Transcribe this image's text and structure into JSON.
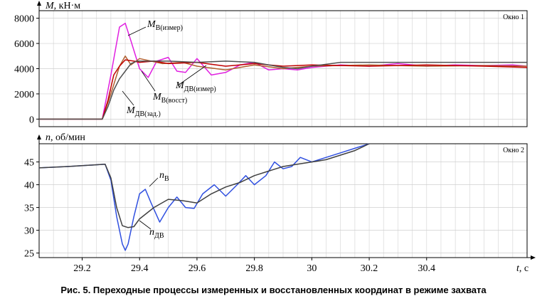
{
  "caption": "Рис. 5. Переходные процессы измеренных и восстановленных координат в режиме захвата",
  "chart_data": [
    {
      "type": "line",
      "window_label": "Окно 1",
      "ylabel_var": "M",
      "ylabel_unit": ", кН·м",
      "ylim": [
        -600,
        8600
      ],
      "yticks": [
        0,
        2000,
        4000,
        6000,
        8000
      ],
      "xlim": [
        29.05,
        30.75
      ],
      "grid": true,
      "annotations": [
        {
          "main": "M",
          "sub": "В(измер)"
        },
        {
          "main": "M",
          "sub": "ДВ(измер)"
        },
        {
          "main": "M",
          "sub": "В(восст)"
        },
        {
          "main": "M",
          "sub": "ДВ(зад.)"
        }
      ],
      "series": [
        {
          "color": "#e020e0",
          "x": [
            29.05,
            29.27,
            29.3,
            29.33,
            29.35,
            29.37,
            29.4,
            29.43,
            29.46,
            29.5,
            29.53,
            29.56,
            29.6,
            29.65,
            29.7,
            29.75,
            29.8,
            29.85,
            29.9,
            29.95,
            30.0,
            30.1,
            30.2,
            30.3,
            30.4,
            30.5,
            30.6,
            30.7,
            30.75
          ],
          "values": [
            0,
            0,
            3500,
            7300,
            7600,
            6200,
            4000,
            3300,
            4600,
            4900,
            3800,
            3700,
            4800,
            3500,
            3700,
            4300,
            4500,
            3900,
            4000,
            3900,
            4100,
            4300,
            4200,
            4400,
            4200,
            4300,
            4250,
            4300,
            4200
          ]
        },
        {
          "color": "#b06030",
          "x": [
            29.05,
            29.27,
            29.3,
            29.33,
            29.35,
            29.37,
            29.4,
            29.44,
            29.48,
            29.55,
            29.6,
            29.7,
            29.8,
            29.9,
            30.0,
            30.2,
            30.4,
            30.6,
            30.75
          ],
          "values": [
            0,
            0,
            2000,
            4200,
            5000,
            4300,
            4800,
            4600,
            4400,
            4500,
            4200,
            3900,
            4300,
            4000,
            4200,
            4300,
            4200,
            4250,
            4200
          ]
        },
        {
          "color": "#c00000",
          "x": [
            29.05,
            29.27,
            29.29,
            29.31,
            29.33,
            29.35,
            29.38,
            29.4,
            29.45,
            29.5,
            29.6,
            29.7,
            29.8,
            29.9,
            30.0,
            30.2,
            30.4,
            30.6,
            30.75
          ],
          "values": [
            0,
            0,
            1500,
            3500,
            4200,
            4700,
            4600,
            4500,
            4600,
            4400,
            4500,
            4200,
            4400,
            4200,
            4300,
            4200,
            4300,
            4200,
            4100
          ]
        },
        {
          "color": "#505050",
          "x": [
            29.05,
            29.27,
            29.29,
            29.31,
            29.33,
            29.35,
            29.37,
            29.39,
            29.42,
            29.5,
            29.6,
            29.7,
            29.8,
            29.85,
            29.9,
            29.95,
            30.0,
            30.1,
            30.2,
            30.4,
            30.6,
            30.75
          ],
          "values": [
            0,
            0,
            1000,
            2300,
            3200,
            3800,
            4400,
            4600,
            4600,
            4600,
            4500,
            4600,
            4500,
            4300,
            4100,
            4000,
            4200,
            4500,
            4500,
            4500,
            4500,
            4500
          ]
        }
      ]
    },
    {
      "type": "line",
      "window_label": "Окно 2",
      "ylabel_var": "n",
      "ylabel_unit": ", об/мин",
      "ylim": [
        24,
        49
      ],
      "yticks": [
        25,
        30,
        35,
        40,
        45
      ],
      "xlim": [
        29.05,
        30.75
      ],
      "xticks": [
        29.2,
        29.4,
        29.6,
        29.8,
        30,
        30.2,
        30.4
      ],
      "xtick_labels": [
        "29.2",
        "29.4",
        "29.6",
        "29.8",
        "30",
        "30.2",
        "30.4"
      ],
      "xlabel_var": "t",
      "xlabel_unit": ", с",
      "grid": true,
      "annotations": [
        {
          "main": "n",
          "sub": "В"
        },
        {
          "main": "n",
          "sub": "ДВ"
        }
      ],
      "series": [
        {
          "color": "#3050e0",
          "x": [
            29.05,
            29.15,
            29.28,
            29.3,
            29.32,
            29.34,
            29.35,
            29.36,
            29.38,
            29.4,
            29.42,
            29.44,
            29.47,
            29.5,
            29.53,
            29.56,
            29.59,
            29.62,
            29.66,
            29.7,
            29.74,
            29.77,
            29.8,
            29.84,
            29.87,
            29.9,
            29.93,
            29.96,
            30.0,
            30.05,
            30.1,
            30.15,
            30.2
          ],
          "values": [
            43.7,
            44.0,
            44.5,
            41.0,
            33.0,
            27.0,
            25.6,
            27.0,
            33.0,
            38.0,
            39.0,
            36.0,
            31.8,
            35.0,
            37.3,
            35.0,
            34.8,
            38.0,
            40.0,
            37.5,
            40.0,
            42.0,
            40.0,
            42.0,
            45.0,
            43.5,
            44.0,
            46.0,
            45.0,
            46.0,
            47.0,
            48.0,
            49.0
          ]
        },
        {
          "color": "#404040",
          "x": [
            29.05,
            29.15,
            29.28,
            29.3,
            29.32,
            29.34,
            29.36,
            29.38,
            29.4,
            29.45,
            29.5,
            29.55,
            29.6,
            29.65,
            29.7,
            29.75,
            29.8,
            29.85,
            29.9,
            29.95,
            30.0,
            30.05,
            30.1,
            30.15,
            30.2
          ],
          "values": [
            43.7,
            44.0,
            44.5,
            41.5,
            35.0,
            31.0,
            30.6,
            30.8,
            32.5,
            35.0,
            36.8,
            36.5,
            36.0,
            38.0,
            39.5,
            40.5,
            42.0,
            43.0,
            44.0,
            44.5,
            45.0,
            45.5,
            46.5,
            47.5,
            49.0
          ]
        }
      ]
    }
  ]
}
